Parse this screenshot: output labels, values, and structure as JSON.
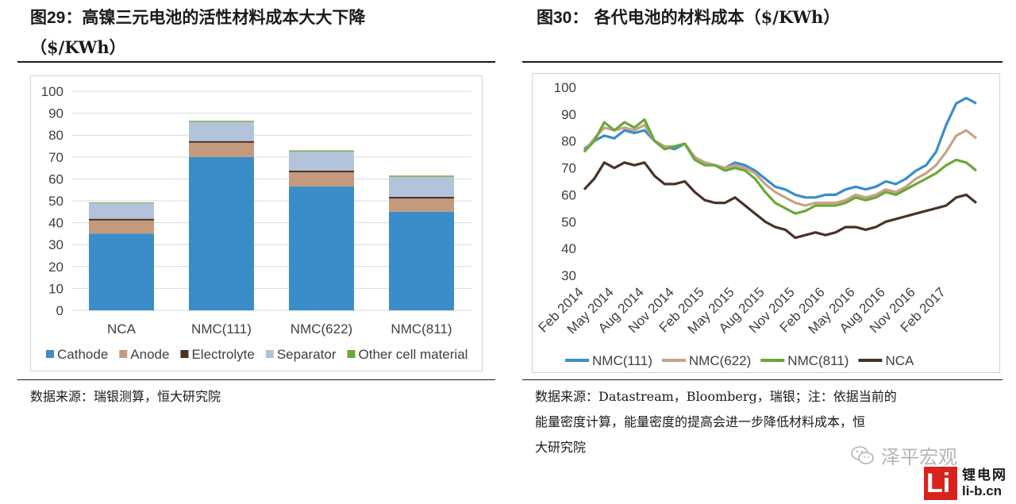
{
  "left": {
    "fig_prefix": "图",
    "fig_num": "29",
    "title_rest": "：高镍三元电池的活性材料成本大大下降",
    "title_line2": "（$/KWh）",
    "source": "数据来源：瑞银测算，恒大研究院"
  },
  "right": {
    "fig_prefix": "图",
    "fig_num": "30",
    "title_rest": "：  各代电池的材料成本（$/KWh）",
    "source_lines": [
      "数据来源：Datastream，Bloomberg，瑞银；注：依据当前的",
      "能量密度计算，能量密度的提高会进一步降低材料成本，恒",
      "大研究院"
    ]
  },
  "watermark": {
    "brand": "泽平宏观",
    "logo_cn": "锂电网",
    "logo_url": "li-b.cn",
    "logo_mark": "Li"
  },
  "chart_data": [
    {
      "type": "bar",
      "stacked": true,
      "title": "",
      "xlabel": "",
      "ylabel": "",
      "ylim": [
        0,
        100
      ],
      "yticks": [
        0,
        10,
        20,
        30,
        40,
        50,
        60,
        70,
        80,
        90,
        100
      ],
      "grid": true,
      "legend": "bottom",
      "categories": [
        "NCA",
        "NMC(111)",
        "NMC(622)",
        "NMC(811)"
      ],
      "series": [
        {
          "name": "Cathode",
          "color": "#3a8dc8",
          "values": [
            35,
            70,
            56.5,
            45
          ]
        },
        {
          "name": "Anode",
          "color": "#c49a7e",
          "values": [
            6,
            6.5,
            6.5,
            6
          ]
        },
        {
          "name": "Electrolyte",
          "color": "#4a3228",
          "values": [
            0.8,
            0.8,
            0.8,
            0.8
          ]
        },
        {
          "name": "Separator",
          "color": "#b3c3dc",
          "values": [
            7.2,
            8.7,
            8.7,
            9.2
          ]
        },
        {
          "name": "Other cell material",
          "color": "#6aa83b",
          "values": [
            0.3,
            0.5,
            0.5,
            0.5
          ]
        }
      ]
    },
    {
      "type": "line",
      "title": "",
      "xlabel": "",
      "ylabel": "",
      "ylim": [
        30,
        100
      ],
      "yticks": [
        30,
        40,
        50,
        60,
        70,
        80,
        90,
        100
      ],
      "grid": false,
      "legend": "bottom",
      "x_ticks": [
        "Feb 2014",
        "May 2014",
        "Aug 2014",
        "Nov 2014",
        "Feb 2015",
        "May 2015",
        "Aug 2015",
        "Nov 2015",
        "Feb 2016",
        "May 2016",
        "Aug 2016",
        "Nov 2016",
        "Feb 2017"
      ],
      "x": [
        "2014-02",
        "2014-03",
        "2014-04",
        "2014-05",
        "2014-06",
        "2014-07",
        "2014-08",
        "2014-09",
        "2014-10",
        "2014-11",
        "2014-12",
        "2015-01",
        "2015-02",
        "2015-03",
        "2015-04",
        "2015-05",
        "2015-06",
        "2015-07",
        "2015-08",
        "2015-09",
        "2015-10",
        "2015-11",
        "2015-12",
        "2016-01",
        "2016-02",
        "2016-03",
        "2016-04",
        "2016-05",
        "2016-06",
        "2016-07",
        "2016-08",
        "2016-09",
        "2016-10",
        "2016-11",
        "2016-12",
        "2017-01",
        "2017-02",
        "2017-03",
        "2017-04",
        "2017-05"
      ],
      "series": [
        {
          "name": "NMC(111)",
          "color": "#3a8dc8",
          "values": [
            77,
            80,
            82,
            81,
            84,
            83,
            84,
            80,
            78,
            77,
            79,
            74,
            72,
            71,
            70,
            72,
            71,
            69,
            66,
            63,
            62,
            60,
            59,
            59,
            60,
            60,
            62,
            63,
            62,
            63,
            65,
            64,
            66,
            69,
            71,
            76,
            86,
            94,
            96,
            94
          ]
        },
        {
          "name": "NMC(622)",
          "color": "#c8a286",
          "values": [
            76,
            81,
            85,
            84,
            85,
            84,
            86,
            80,
            78,
            78,
            79,
            74,
            72,
            71,
            70,
            71,
            70,
            68,
            64,
            61,
            59,
            57,
            56,
            57,
            57,
            57,
            58,
            60,
            59,
            60,
            62,
            61,
            63,
            66,
            68,
            71,
            76,
            82,
            84,
            81
          ]
        },
        {
          "name": "NMC(811)",
          "color": "#6aa83b",
          "values": [
            76,
            80,
            87,
            84,
            87,
            85,
            88,
            80,
            77,
            78,
            79,
            73,
            71,
            71,
            69,
            70,
            69,
            66,
            61,
            57,
            55,
            53,
            54,
            56,
            56,
            56,
            57,
            59,
            58,
            59,
            61,
            60,
            62,
            64,
            66,
            68,
            71,
            73,
            72,
            69
          ]
        },
        {
          "name": "NCA",
          "color": "#4a3228",
          "values": [
            62,
            66,
            72,
            70,
            72,
            71,
            72,
            67,
            64,
            64,
            65,
            61,
            58,
            57,
            57,
            59,
            56,
            53,
            50,
            48,
            47,
            44,
            45,
            46,
            45,
            46,
            48,
            48,
            47,
            48,
            50,
            51,
            52,
            53,
            54,
            55,
            56,
            59,
            60,
            57
          ]
        }
      ]
    }
  ]
}
